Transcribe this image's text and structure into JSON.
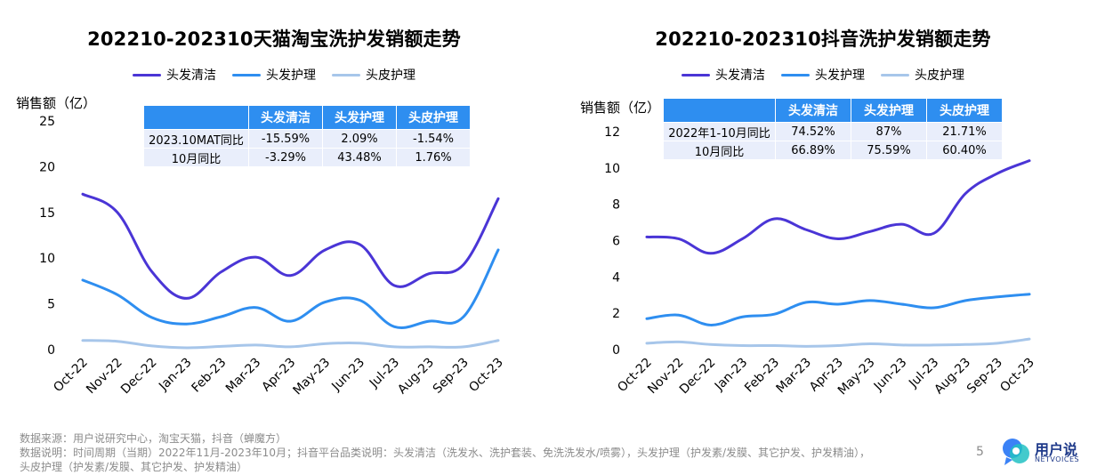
{
  "colors": {
    "hair_wash": "#4a35d6",
    "hair_care": "#2e8ef0",
    "scalp_care": "#a7c6ea",
    "table_header": "#2e8ef0",
    "table_cell": "#e9eefb"
  },
  "charts": [
    {
      "title": "202210-202310天猫淘宝洗护发销额走势",
      "ylabel": "销售额（亿）",
      "table": {
        "headers": [
          "",
          "头发清洁",
          "头发护理",
          "头皮护理"
        ],
        "rows": [
          [
            "2023.10MAT同比",
            "-15.59%",
            "2.09%",
            "-1.54%"
          ],
          [
            "10月同比",
            "-3.29%",
            "43.48%",
            "1.76%"
          ]
        ]
      }
    },
    {
      "title": "202210-202310抖音洗护发销额走势",
      "ylabel": "销售额（亿）",
      "table": {
        "headers": [
          "",
          "头发清洁",
          "头发护理",
          "头皮护理"
        ],
        "rows": [
          [
            "2022年1-10月同比",
            "74.52%",
            "87%",
            "21.71%"
          ],
          [
            "10月同比",
            "66.89%",
            "75.59%",
            "60.40%"
          ]
        ]
      }
    }
  ],
  "chart_data": [
    {
      "type": "line",
      "title": "202210-202310天猫淘宝洗护发销额走势",
      "ylabel": "销售额（亿）",
      "categories": [
        "Oct-22",
        "Nov-22",
        "Dec-22",
        "Jan-23",
        "Feb-23",
        "Mar-23",
        "Apr-23",
        "May-23",
        "Jun-23",
        "Jul-23",
        "Aug-23",
        "Sep-23",
        "Oct-23"
      ],
      "ylim": [
        0,
        25
      ],
      "yticks": [
        0,
        5,
        10,
        15,
        20,
        25
      ],
      "legend_position": "top-center",
      "grid": false,
      "series": [
        {
          "name": "头发清洁",
          "values": [
            17.0,
            15.0,
            8.5,
            5.6,
            8.5,
            10.1,
            8.1,
            10.9,
            11.5,
            7.0,
            8.3,
            9.3,
            16.5
          ]
        },
        {
          "name": "头发护理",
          "values": [
            7.6,
            6.0,
            3.5,
            2.8,
            3.6,
            4.6,
            3.1,
            5.2,
            5.4,
            2.5,
            3.1,
            3.6,
            10.9
          ]
        },
        {
          "name": "头皮护理",
          "values": [
            1.0,
            0.9,
            0.4,
            0.2,
            0.35,
            0.5,
            0.3,
            0.65,
            0.7,
            0.3,
            0.3,
            0.3,
            1.0
          ]
        }
      ]
    },
    {
      "type": "line",
      "title": "202210-202310抖音洗护发销额走势",
      "ylabel": "销售额（亿）",
      "categories": [
        "Oct-22",
        "Nov-22",
        "Dec-22",
        "Jan-23",
        "Feb-23",
        "Mar-23",
        "Apr-23",
        "May-23",
        "Jun-23",
        "Jul-23",
        "Aug-23",
        "Sep-23",
        "Oct-23"
      ],
      "ylim": [
        0,
        12
      ],
      "yticks": [
        0,
        2,
        4,
        6,
        8,
        10,
        12
      ],
      "legend_position": "top-center",
      "grid": false,
      "series": [
        {
          "name": "头发清洁",
          "values": [
            6.2,
            6.1,
            5.3,
            6.1,
            7.2,
            6.6,
            6.1,
            6.5,
            6.9,
            6.4,
            8.6,
            9.7,
            10.4
          ]
        },
        {
          "name": "头发护理",
          "values": [
            1.7,
            1.9,
            1.35,
            1.8,
            1.95,
            2.6,
            2.5,
            2.7,
            2.5,
            2.3,
            2.7,
            2.9,
            3.05
          ]
        },
        {
          "name": "头皮护理",
          "values": [
            0.35,
            0.42,
            0.28,
            0.22,
            0.22,
            0.18,
            0.22,
            0.32,
            0.25,
            0.25,
            0.28,
            0.35,
            0.58
          ]
        }
      ]
    }
  ],
  "footer": {
    "line1": "数据来源：用户说研究中心，淘宝天猫，抖音（蝉魔方）",
    "line2": "数据说明：时间周期（当期）2022年11月-2023年10月；抖音平台品类说明：头发清洁（洗发水、洗护套装、免洗洗发水/喷雾），头发护理（护发素/发膜、其它护发、护发精油），",
    "line3": "头皮护理（护发素/发膜、其它护发、护发精油）"
  },
  "page_number": "5",
  "logo": {
    "name": "用户说",
    "sub": "NETVOICES",
    "icon": "speech-bubble-logo-icon"
  }
}
